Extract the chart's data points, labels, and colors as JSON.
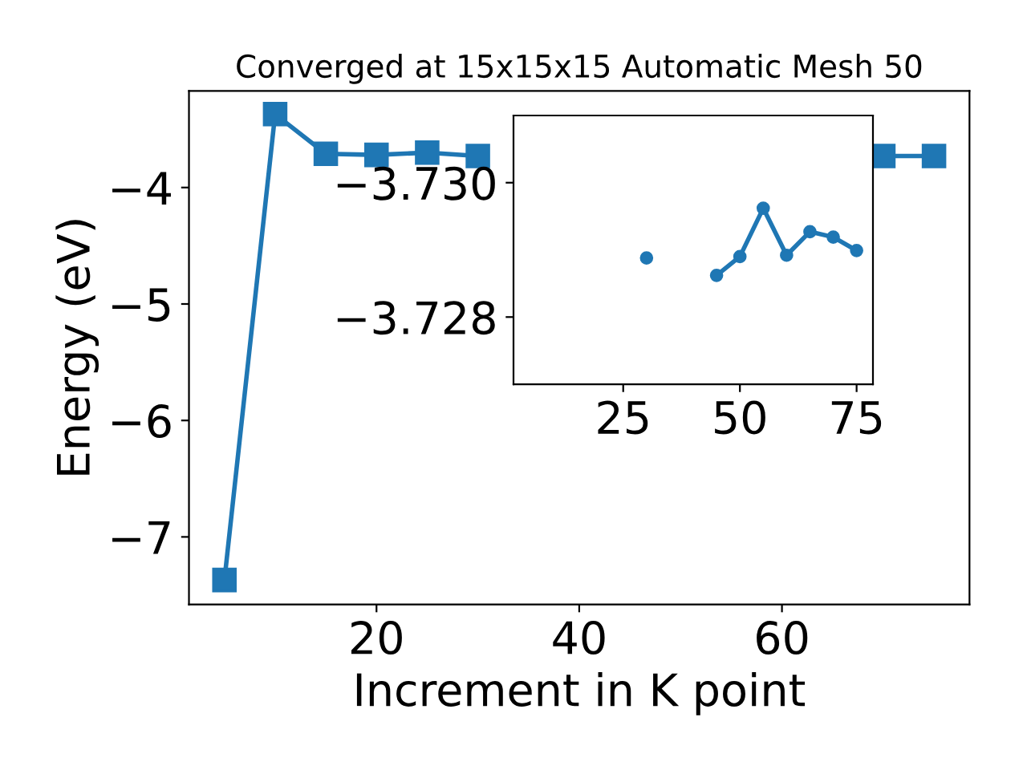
{
  "chart_data": [
    {
      "type": "line",
      "title": "Converged at 15x15x15 Automatic Mesh 50",
      "xlabel": "Increment in K point",
      "ylabel": "Energy (eV)",
      "x": [
        5,
        10,
        15,
        20,
        25,
        30,
        35,
        40,
        45,
        50,
        55,
        60,
        65,
        70,
        75
      ],
      "series": [
        {
          "color": "#1f77b4",
          "values": [
            -7.37,
            -3.37,
            -3.71,
            -3.72,
            -3.7,
            -3.73,
            null,
            null,
            null,
            null,
            null,
            null,
            null,
            -3.73,
            -3.73
          ]
        }
      ],
      "marker": "square",
      "line_style": "solid",
      "xlim": [
        1.5,
        78.5
      ],
      "ylim": [
        -7.58,
        -3.17
      ],
      "xticks": [
        20,
        40,
        60
      ],
      "yticks": [
        -7,
        -6,
        -5,
        -4
      ]
    },
    {
      "type": "line",
      "series": [
        {
          "color": "#1f77b4",
          "x": [
            30,
            35,
            40,
            45,
            50,
            55,
            60,
            65,
            70,
            75
          ],
          "values": [
            -3.72888,
            null,
            null,
            -3.72862,
            -3.7289,
            -3.72962,
            -3.72892,
            -3.72927,
            -3.72919,
            -3.72899
          ]
        }
      ],
      "marker": "circle",
      "line_style": "solid",
      "xlim": [
        1.5,
        78.5
      ],
      "ylim": [
        -3.727,
        -3.731
      ],
      "xticks": [
        25,
        50,
        75
      ],
      "yticks": [
        {
          "value": -3.73,
          "label": "−3.730"
        },
        {
          "value": -3.728,
          "label": "−3.728"
        }
      ]
    }
  ]
}
